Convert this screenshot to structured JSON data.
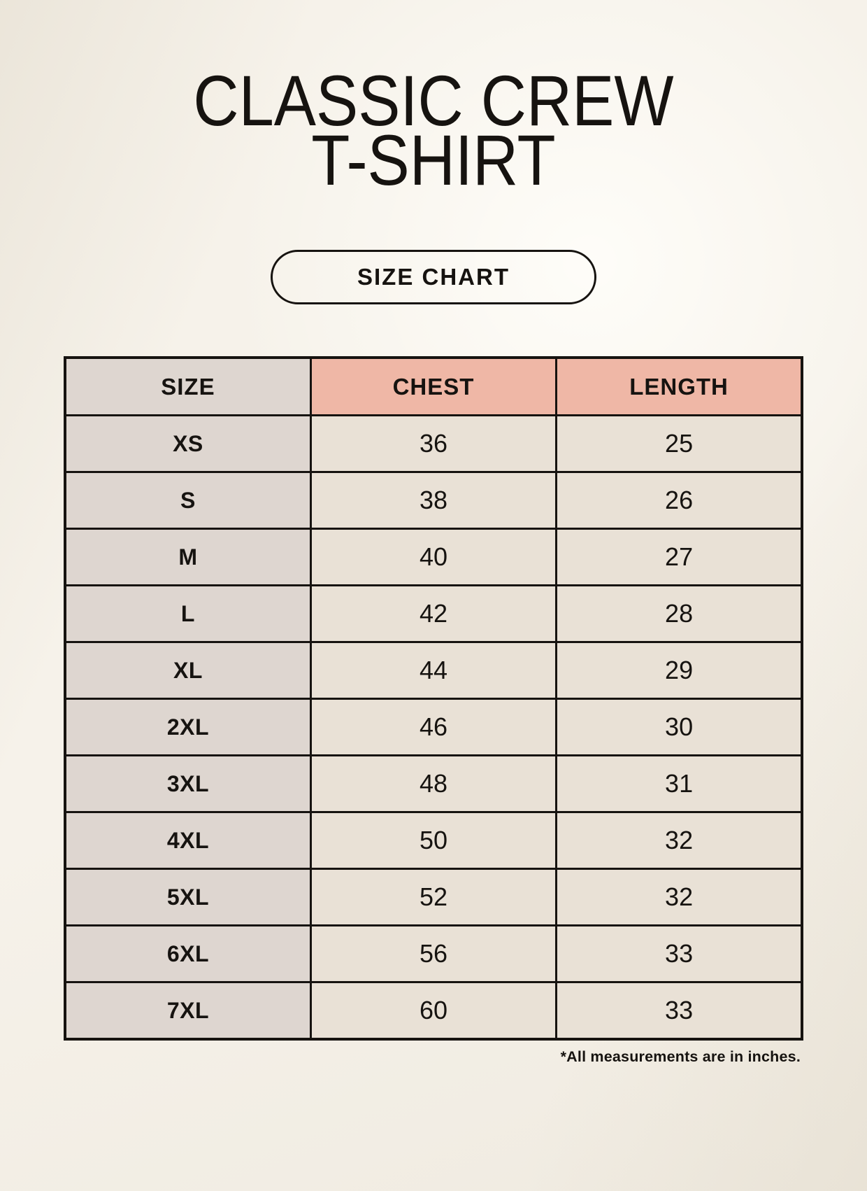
{
  "title": {
    "line1": "CLASSIC CREW",
    "line2": "T-SHIRT"
  },
  "size_chart_button": {
    "label": "SIZE CHART"
  },
  "table": {
    "headers": [
      "SIZE",
      "CHEST",
      "LENGTH"
    ],
    "rows": [
      {
        "size": "XS",
        "chest": "36",
        "length": "25"
      },
      {
        "size": "S",
        "chest": "38",
        "length": "26"
      },
      {
        "size": "M",
        "chest": "40",
        "length": "27"
      },
      {
        "size": "L",
        "chest": "42",
        "length": "28"
      },
      {
        "size": "XL",
        "chest": "44",
        "length": "29"
      },
      {
        "size": "2XL",
        "chest": "46",
        "length": "30"
      },
      {
        "size": "3XL",
        "chest": "48",
        "length": "31"
      },
      {
        "size": "4XL",
        "chest": "50",
        "length": "32"
      },
      {
        "size": "5XL",
        "chest": "52",
        "length": "32"
      },
      {
        "size": "6XL",
        "chest": "56",
        "length": "33"
      },
      {
        "size": "7XL",
        "chest": "60",
        "length": "33"
      }
    ]
  },
  "footnote": "*All measurements are in inches.",
  "colors": {
    "page_bg": "#f6f2ea",
    "header_pink": "#efb7a6",
    "size_column_bg": "#ded6d0",
    "value_cell_bg": "#e9e1d6",
    "border_color": "#161310",
    "text_color": "#161310"
  }
}
